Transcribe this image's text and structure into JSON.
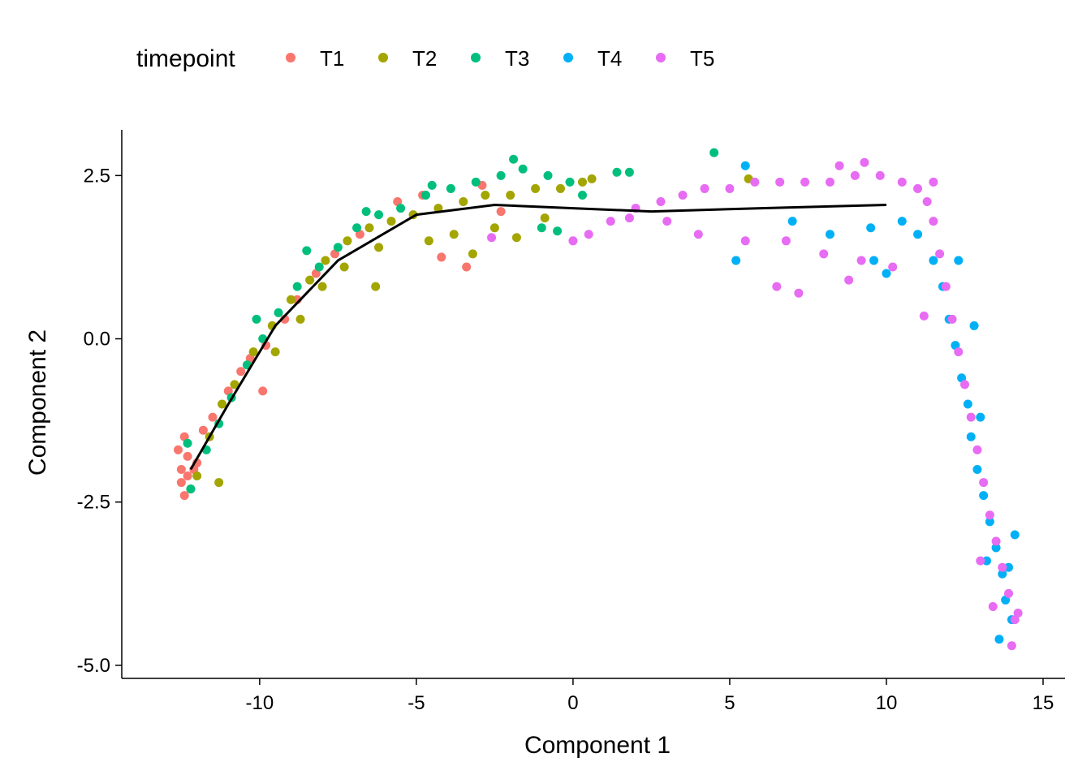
{
  "chart_data": {
    "type": "scatter",
    "xlabel": "Component 1",
    "ylabel": "Component 2",
    "xlim": [
      -14.4,
      15.7
    ],
    "ylim": [
      -5.2,
      3.2
    ],
    "x_ticks": [
      "-10",
      "-5",
      "0",
      "5",
      "10",
      "15"
    ],
    "y_ticks": [
      "-5.0",
      "-2.5",
      "0.0",
      "2.5"
    ],
    "grid": false,
    "legend": {
      "title": "timepoint",
      "placement": "top-left",
      "entries": [
        {
          "name": "T1",
          "color": "#F8766D"
        },
        {
          "name": "T2",
          "color": "#A3A500"
        },
        {
          "name": "T3",
          "color": "#00BF7D"
        },
        {
          "name": "T4",
          "color": "#00B0F6"
        },
        {
          "name": "T5",
          "color": "#E76BF3"
        }
      ]
    },
    "trajectory": [
      [
        -12.2,
        -2.0
      ],
      [
        -11,
        -1.0
      ],
      [
        -9.5,
        0.2
      ],
      [
        -7.5,
        1.2
      ],
      [
        -5,
        1.9
      ],
      [
        -2.5,
        2.05
      ],
      [
        0,
        2.0
      ],
      [
        2.5,
        1.95
      ],
      [
        6,
        2.0
      ],
      [
        10,
        2.05
      ]
    ],
    "series": [
      {
        "name": "T1",
        "color": "#F8766D",
        "points": [
          [
            -12.5,
            -2.2
          ],
          [
            -12.3,
            -1.8
          ],
          [
            -12.4,
            -2.4
          ],
          [
            -12.1,
            -2.0
          ],
          [
            -12.6,
            -1.7
          ],
          [
            -12.2,
            -2.3
          ],
          [
            -12.4,
            -1.5
          ],
          [
            -12.0,
            -1.9
          ],
          [
            -12.3,
            -2.1
          ],
          [
            -12.5,
            -2.0
          ],
          [
            -11.8,
            -1.4
          ],
          [
            -11.5,
            -1.2
          ],
          [
            -11.0,
            -0.8
          ],
          [
            -10.6,
            -0.5
          ],
          [
            -10.3,
            -0.3
          ],
          [
            -9.8,
            -0.1
          ],
          [
            -9.2,
            0.3
          ],
          [
            -8.8,
            0.6
          ],
          [
            -8.2,
            1.0
          ],
          [
            -7.6,
            1.3
          ],
          [
            -6.8,
            1.6
          ],
          [
            -5.6,
            2.1
          ],
          [
            -4.8,
            2.2
          ],
          [
            -2.9,
            2.35
          ],
          [
            -4.2,
            1.25
          ],
          [
            -3.4,
            1.1
          ],
          [
            -2.3,
            1.95
          ],
          [
            -9.9,
            -0.8
          ]
        ]
      },
      {
        "name": "T2",
        "color": "#A3A500",
        "points": [
          [
            -12.0,
            -2.1
          ],
          [
            -11.6,
            -1.5
          ],
          [
            -11.2,
            -1.0
          ],
          [
            -10.8,
            -0.7
          ],
          [
            -10.2,
            -0.2
          ],
          [
            -9.6,
            0.2
          ],
          [
            -9.0,
            0.6
          ],
          [
            -8.4,
            0.9
          ],
          [
            -7.9,
            1.2
          ],
          [
            -7.2,
            1.5
          ],
          [
            -6.5,
            1.7
          ],
          [
            -5.8,
            1.8
          ],
          [
            -5.1,
            1.9
          ],
          [
            -4.3,
            2.0
          ],
          [
            -3.5,
            2.1
          ],
          [
            -2.8,
            2.2
          ],
          [
            -2.0,
            2.2
          ],
          [
            -1.2,
            2.3
          ],
          [
            -0.4,
            2.3
          ],
          [
            0.3,
            2.4
          ],
          [
            0.6,
            2.45
          ],
          [
            -9.5,
            -0.2
          ],
          [
            -8.7,
            0.3
          ],
          [
            -8.0,
            0.8
          ],
          [
            -7.3,
            1.1
          ],
          [
            -6.2,
            1.4
          ],
          [
            -4.6,
            1.5
          ],
          [
            -3.8,
            1.6
          ],
          [
            -3.2,
            1.3
          ],
          [
            -2.5,
            1.7
          ],
          [
            -1.8,
            1.55
          ],
          [
            -6.3,
            0.8
          ],
          [
            -11.3,
            -2.2
          ],
          [
            5.6,
            2.45
          ],
          [
            -0.9,
            1.85
          ]
        ]
      },
      {
        "name": "T3",
        "color": "#00BF7D",
        "points": [
          [
            -12.2,
            -2.3
          ],
          [
            -11.7,
            -1.7
          ],
          [
            -11.3,
            -1.3
          ],
          [
            -10.9,
            -0.9
          ],
          [
            -10.4,
            -0.4
          ],
          [
            -9.9,
            0.0
          ],
          [
            -9.4,
            0.4
          ],
          [
            -8.8,
            0.8
          ],
          [
            -8.1,
            1.1
          ],
          [
            -7.5,
            1.4
          ],
          [
            -6.9,
            1.7
          ],
          [
            -6.2,
            1.9
          ],
          [
            -5.5,
            2.0
          ],
          [
            -4.7,
            2.2
          ],
          [
            -3.9,
            2.3
          ],
          [
            -3.1,
            2.4
          ],
          [
            -2.3,
            2.5
          ],
          [
            -1.6,
            2.6
          ],
          [
            -0.8,
            2.5
          ],
          [
            -0.1,
            2.4
          ],
          [
            0.3,
            2.2
          ],
          [
            -1.9,
            2.75
          ],
          [
            -4.5,
            2.35
          ],
          [
            -6.6,
            1.95
          ],
          [
            -8.5,
            1.35
          ],
          [
            -10.1,
            0.3
          ],
          [
            1.4,
            2.55
          ],
          [
            1.8,
            2.55
          ],
          [
            4.5,
            2.85
          ],
          [
            -1.0,
            1.7
          ],
          [
            -0.5,
            1.65
          ],
          [
            -12.3,
            -1.6
          ]
        ]
      },
      {
        "name": "T4",
        "color": "#00B0F6",
        "points": [
          [
            5.5,
            2.65
          ],
          [
            7.0,
            1.8
          ],
          [
            8.2,
            1.6
          ],
          [
            9.5,
            1.7
          ],
          [
            10.5,
            1.8
          ],
          [
            11.0,
            1.6
          ],
          [
            11.5,
            1.2
          ],
          [
            11.8,
            0.8
          ],
          [
            12.0,
            0.3
          ],
          [
            12.2,
            -0.1
          ],
          [
            12.4,
            -0.6
          ],
          [
            12.6,
            -1.0
          ],
          [
            12.7,
            -1.5
          ],
          [
            12.9,
            -2.0
          ],
          [
            13.1,
            -2.4
          ],
          [
            13.3,
            -2.8
          ],
          [
            13.5,
            -3.2
          ],
          [
            13.7,
            -3.6
          ],
          [
            13.8,
            -4.0
          ],
          [
            14.0,
            -4.3
          ],
          [
            13.6,
            -4.6
          ],
          [
            14.1,
            -3.0
          ],
          [
            13.2,
            -3.4
          ],
          [
            10.0,
            1.0
          ],
          [
            9.6,
            1.2
          ],
          [
            5.2,
            1.2
          ],
          [
            12.3,
            1.2
          ],
          [
            12.8,
            0.2
          ],
          [
            13.0,
            -1.2
          ],
          [
            13.9,
            -3.5
          ]
        ]
      },
      {
        "name": "T5",
        "color": "#E76BF3",
        "points": [
          [
            0.5,
            1.6
          ],
          [
            1.2,
            1.8
          ],
          [
            2.0,
            2.0
          ],
          [
            2.8,
            2.1
          ],
          [
            3.5,
            2.2
          ],
          [
            4.2,
            2.3
          ],
          [
            5.0,
            2.3
          ],
          [
            5.8,
            2.4
          ],
          [
            6.6,
            2.4
          ],
          [
            7.4,
            2.4
          ],
          [
            8.2,
            2.4
          ],
          [
            9.0,
            2.5
          ],
          [
            9.8,
            2.5
          ],
          [
            10.5,
            2.4
          ],
          [
            11.0,
            2.3
          ],
          [
            11.3,
            2.1
          ],
          [
            11.5,
            1.8
          ],
          [
            11.7,
            1.3
          ],
          [
            11.9,
            0.8
          ],
          [
            12.1,
            0.3
          ],
          [
            12.3,
            -0.2
          ],
          [
            12.5,
            -0.7
          ],
          [
            12.7,
            -1.2
          ],
          [
            12.9,
            -1.7
          ],
          [
            13.1,
            -2.2
          ],
          [
            13.3,
            -2.7
          ],
          [
            13.5,
            -3.1
          ],
          [
            13.7,
            -3.5
          ],
          [
            13.9,
            -3.9
          ],
          [
            14.1,
            -4.3
          ],
          [
            14.0,
            -4.7
          ],
          [
            13.4,
            -4.1
          ],
          [
            4.0,
            1.6
          ],
          [
            5.5,
            1.5
          ],
          [
            6.8,
            1.5
          ],
          [
            8.0,
            1.3
          ],
          [
            9.2,
            1.2
          ],
          [
            10.2,
            1.1
          ],
          [
            6.5,
            0.8
          ],
          [
            7.2,
            0.7
          ],
          [
            8.8,
            0.9
          ],
          [
            11.2,
            0.35
          ],
          [
            9.3,
            2.7
          ],
          [
            11.5,
            2.4
          ],
          [
            8.5,
            2.65
          ],
          [
            0.0,
            1.5
          ],
          [
            -2.6,
            1.55
          ],
          [
            13.0,
            -3.4
          ],
          [
            14.2,
            -4.2
          ],
          [
            3.0,
            1.8
          ],
          [
            1.8,
            1.85
          ]
        ]
      }
    ]
  }
}
